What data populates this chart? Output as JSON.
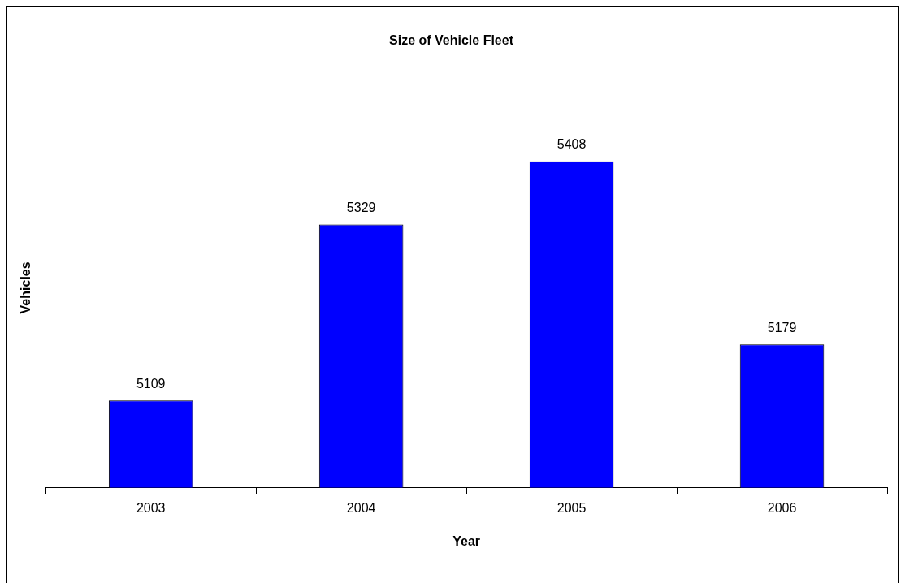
{
  "chart_data": {
    "type": "bar",
    "title": "Size of Vehicle Fleet",
    "xlabel": "Year",
    "ylabel": "Vehicles",
    "categories": [
      "2003",
      "2004",
      "2005",
      "2006"
    ],
    "values": [
      5109,
      5329,
      5408,
      5179
    ],
    "color": "#0000ff",
    "data_labels": true,
    "legend": false,
    "grid": false,
    "tick_labels": "x"
  }
}
